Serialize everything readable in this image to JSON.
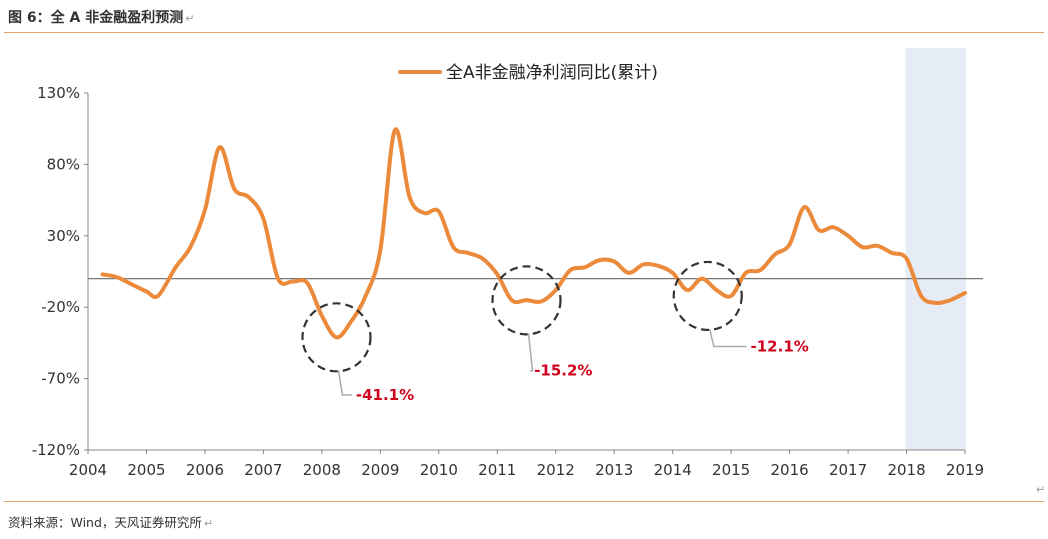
{
  "figure": {
    "label": "图 6：",
    "title": "全 A 非金融盈利预测",
    "source": "资料来源：Wind，天风证券研究所",
    "para_mark": "↵"
  },
  "chart_data": {
    "type": "line",
    "title": "",
    "xlabel": "",
    "ylabel": "",
    "ylim": [
      -120,
      130
    ],
    "xlim": [
      2004,
      2019
    ],
    "y_ticks": [
      -120,
      -70,
      -20,
      30,
      80,
      130
    ],
    "y_tick_labels": [
      "-120%",
      "-70%",
      "-20%",
      "30%",
      "80%",
      "130%"
    ],
    "x_ticks": [
      2004,
      2005,
      2006,
      2007,
      2008,
      2009,
      2010,
      2011,
      2012,
      2013,
      2014,
      2015,
      2016,
      2017,
      2018,
      2019
    ],
    "x_tick_labels": [
      "2004",
      "2005",
      "2006",
      "2007",
      "2008",
      "2009",
      "2010",
      "2011",
      "2012",
      "2013",
      "2014",
      "2015",
      "2016",
      "2017",
      "2018",
      "2019"
    ],
    "grid": false,
    "legend_position": "top-center",
    "line_color": "#ec8a3b",
    "highlight_color": "#e6ecf5",
    "highlight_range": [
      2018,
      2019
    ],
    "series": [
      {
        "name": "全A非金融净利润同比(累计)",
        "points": [
          [
            2004.25,
            3
          ],
          [
            2004.5,
            1
          ],
          [
            2004.75,
            -4
          ],
          [
            2005.0,
            -9
          ],
          [
            2005.2,
            -12
          ],
          [
            2005.5,
            8
          ],
          [
            2005.75,
            22
          ],
          [
            2006.0,
            48
          ],
          [
            2006.25,
            92
          ],
          [
            2006.5,
            63
          ],
          [
            2006.75,
            57
          ],
          [
            2007.0,
            42
          ],
          [
            2007.25,
            0
          ],
          [
            2007.5,
            -2
          ],
          [
            2007.75,
            -3
          ],
          [
            2008.0,
            -26
          ],
          [
            2008.25,
            -41.1
          ],
          [
            2008.5,
            -30
          ],
          [
            2008.75,
            -12
          ],
          [
            2009.0,
            20
          ],
          [
            2009.25,
            104
          ],
          [
            2009.5,
            57
          ],
          [
            2009.75,
            46
          ],
          [
            2010.0,
            47
          ],
          [
            2010.25,
            22
          ],
          [
            2010.5,
            18
          ],
          [
            2010.75,
            14
          ],
          [
            2011.0,
            3
          ],
          [
            2011.25,
            -15.2
          ],
          [
            2011.5,
            -15
          ],
          [
            2011.75,
            -16
          ],
          [
            2012.0,
            -8
          ],
          [
            2012.25,
            6
          ],
          [
            2012.5,
            8
          ],
          [
            2012.75,
            13
          ],
          [
            2013.0,
            12
          ],
          [
            2013.25,
            4
          ],
          [
            2013.5,
            10
          ],
          [
            2013.75,
            9
          ],
          [
            2014.0,
            4
          ],
          [
            2014.25,
            -8
          ],
          [
            2014.5,
            0
          ],
          [
            2014.75,
            -8
          ],
          [
            2015.0,
            -12.1
          ],
          [
            2015.25,
            4
          ],
          [
            2015.5,
            6
          ],
          [
            2015.75,
            17
          ],
          [
            2016.0,
            24
          ],
          [
            2016.25,
            50
          ],
          [
            2016.5,
            34
          ],
          [
            2016.75,
            36
          ],
          [
            2017.0,
            30
          ],
          [
            2017.25,
            22
          ],
          [
            2017.5,
            23
          ],
          [
            2017.75,
            18
          ],
          [
            2018.0,
            14
          ],
          [
            2018.25,
            -12
          ],
          [
            2018.5,
            -17
          ],
          [
            2018.75,
            -15
          ],
          [
            2019.0,
            -10
          ]
        ]
      }
    ],
    "annotations": [
      {
        "x": 2008.25,
        "y": -41.1,
        "label": "-41.1%",
        "label_x": 2008.65,
        "label_y": -85
      },
      {
        "x": 2011.5,
        "y": -15.2,
        "label": "-15.2%",
        "label_x": 2011.7,
        "label_y": -68
      },
      {
        "x": 2014.6,
        "y": -12.1,
        "label": "-12.1%",
        "label_x": 2015.4,
        "label_y": -51
      }
    ]
  }
}
